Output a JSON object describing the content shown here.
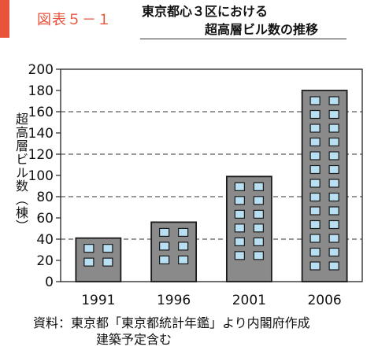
{
  "header": {
    "figure_label": "図表５－１",
    "title_line1": "東京都心３区における",
    "title_line2": "超高層ビル数の推移"
  },
  "source": {
    "line1": "資料：東京都「東京都統計年鑑」より内閣府作成",
    "line2": "建築予定含む"
  },
  "colors": {
    "accent": "#e8533c",
    "building": "#8a8a8a",
    "window": "#b8dff2"
  },
  "chart_data": {
    "type": "bar",
    "title": "東京都心３区における超高層ビル数の推移",
    "categories": [
      "1991",
      "1996",
      "2001",
      "2006"
    ],
    "values": [
      41,
      56,
      99,
      180
    ],
    "ylabel": "超高層ビル数（棟）",
    "ylim": [
      0,
      200
    ],
    "yticks": [
      0,
      20,
      40,
      60,
      80,
      100,
      120,
      140,
      160,
      180,
      200
    ],
    "grid": "dashed horizontal at 40, 80, 120, 160",
    "bar_style": "building with windows"
  }
}
